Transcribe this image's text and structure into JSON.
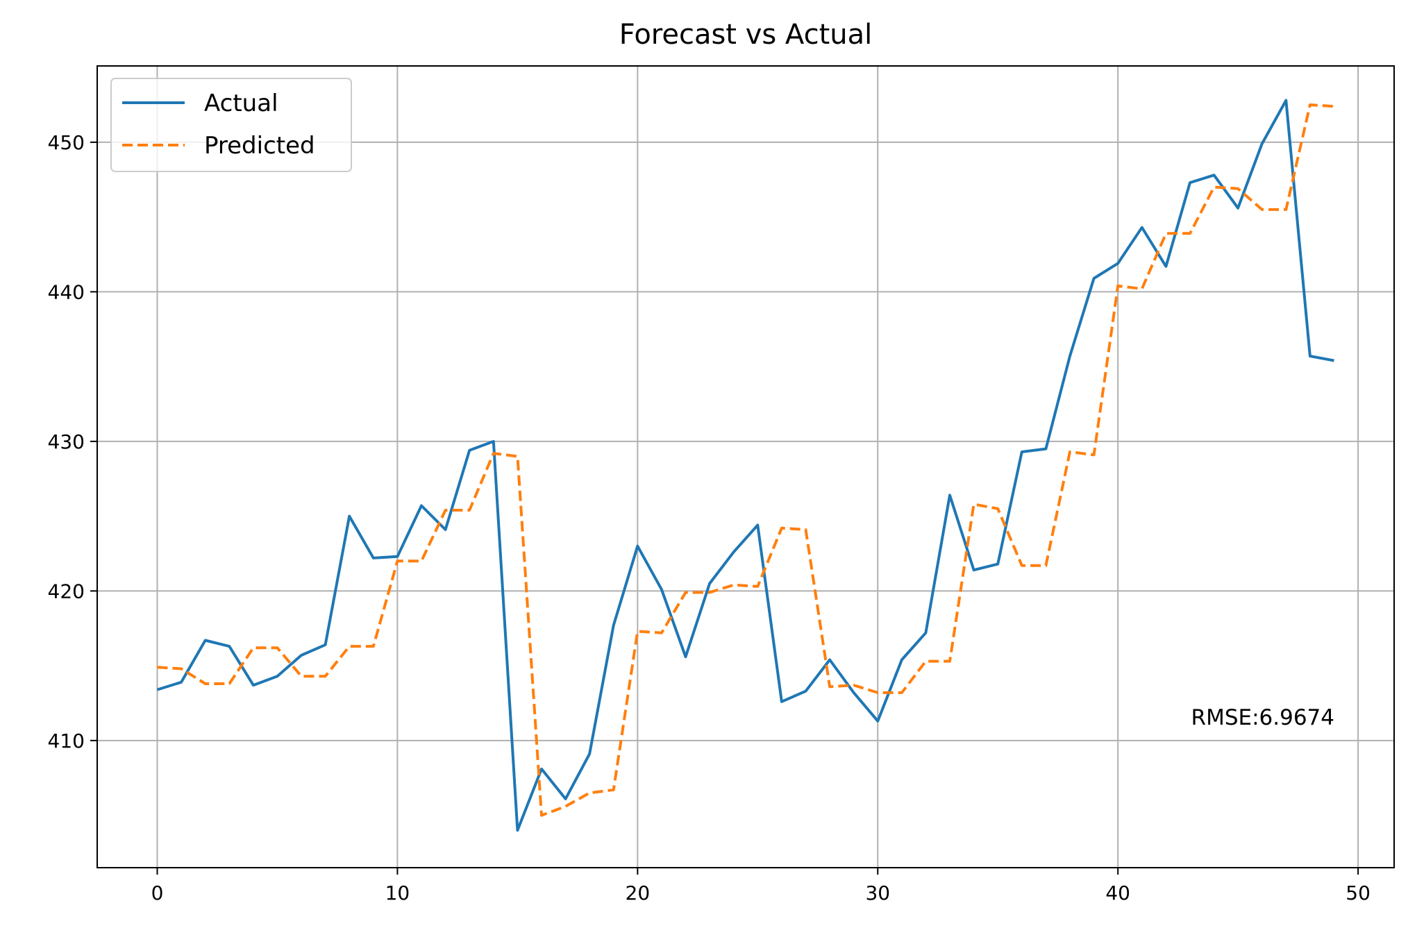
{
  "chart_data": {
    "type": "line",
    "title": "Forecast vs Actual",
    "xlabel": "",
    "ylabel": "",
    "xlim": [
      -2.5,
      51.5
    ],
    "ylim": [
      401.5,
      455.1
    ],
    "xticks": [
      0,
      10,
      20,
      30,
      40,
      50
    ],
    "yticks": [
      410,
      420,
      430,
      440,
      450
    ],
    "grid": true,
    "legend_position": "top-left",
    "x": [
      0,
      1,
      2,
      3,
      4,
      5,
      6,
      7,
      8,
      9,
      10,
      11,
      12,
      13,
      14,
      15,
      16,
      17,
      18,
      19,
      20,
      21,
      22,
      23,
      24,
      25,
      26,
      27,
      28,
      29,
      30,
      31,
      32,
      33,
      34,
      35,
      36,
      37,
      38,
      39,
      40,
      41,
      42,
      43,
      44,
      45,
      46,
      47,
      48,
      49
    ],
    "series": [
      {
        "name": "Actual",
        "color": "#1f77b4",
        "style": "solid",
        "values": [
          413.4,
          413.9,
          416.7,
          416.3,
          413.7,
          414.3,
          415.7,
          416.4,
          425.0,
          422.2,
          422.3,
          425.7,
          424.1,
          429.4,
          430.0,
          404.0,
          408.1,
          406.1,
          409.1,
          417.7,
          423.0,
          420.1,
          415.6,
          420.5,
          422.6,
          424.4,
          412.6,
          413.3,
          415.4,
          413.2,
          411.3,
          415.4,
          417.2,
          426.4,
          421.4,
          421.8,
          429.3,
          429.5,
          435.7,
          440.9,
          441.9,
          444.3,
          441.7,
          447.3,
          447.8,
          445.6,
          449.9,
          452.8,
          435.7,
          435.4
        ],
        "label_values": []
      },
      {
        "name": "Predicted",
        "color": "#ff7f0e",
        "style": "dashed",
        "values": [
          414.9,
          414.8,
          413.8,
          413.8,
          416.2,
          416.2,
          414.3,
          414.3,
          416.3,
          416.3,
          422.0,
          422.0,
          425.4,
          425.4,
          429.2,
          429.0,
          405.0,
          405.6,
          406.5,
          406.7,
          417.3,
          417.2,
          419.9,
          419.9,
          420.4,
          420.3,
          424.2,
          424.1,
          413.6,
          413.7,
          413.2,
          413.2,
          415.3,
          415.3,
          425.8,
          425.5,
          421.7,
          421.7,
          429.3,
          429.1,
          440.4,
          440.2,
          443.9,
          443.9,
          447.0,
          446.9,
          445.5,
          445.5,
          452.5,
          452.4
        ]
      }
    ],
    "annotation": "RMSE:6.9674"
  }
}
